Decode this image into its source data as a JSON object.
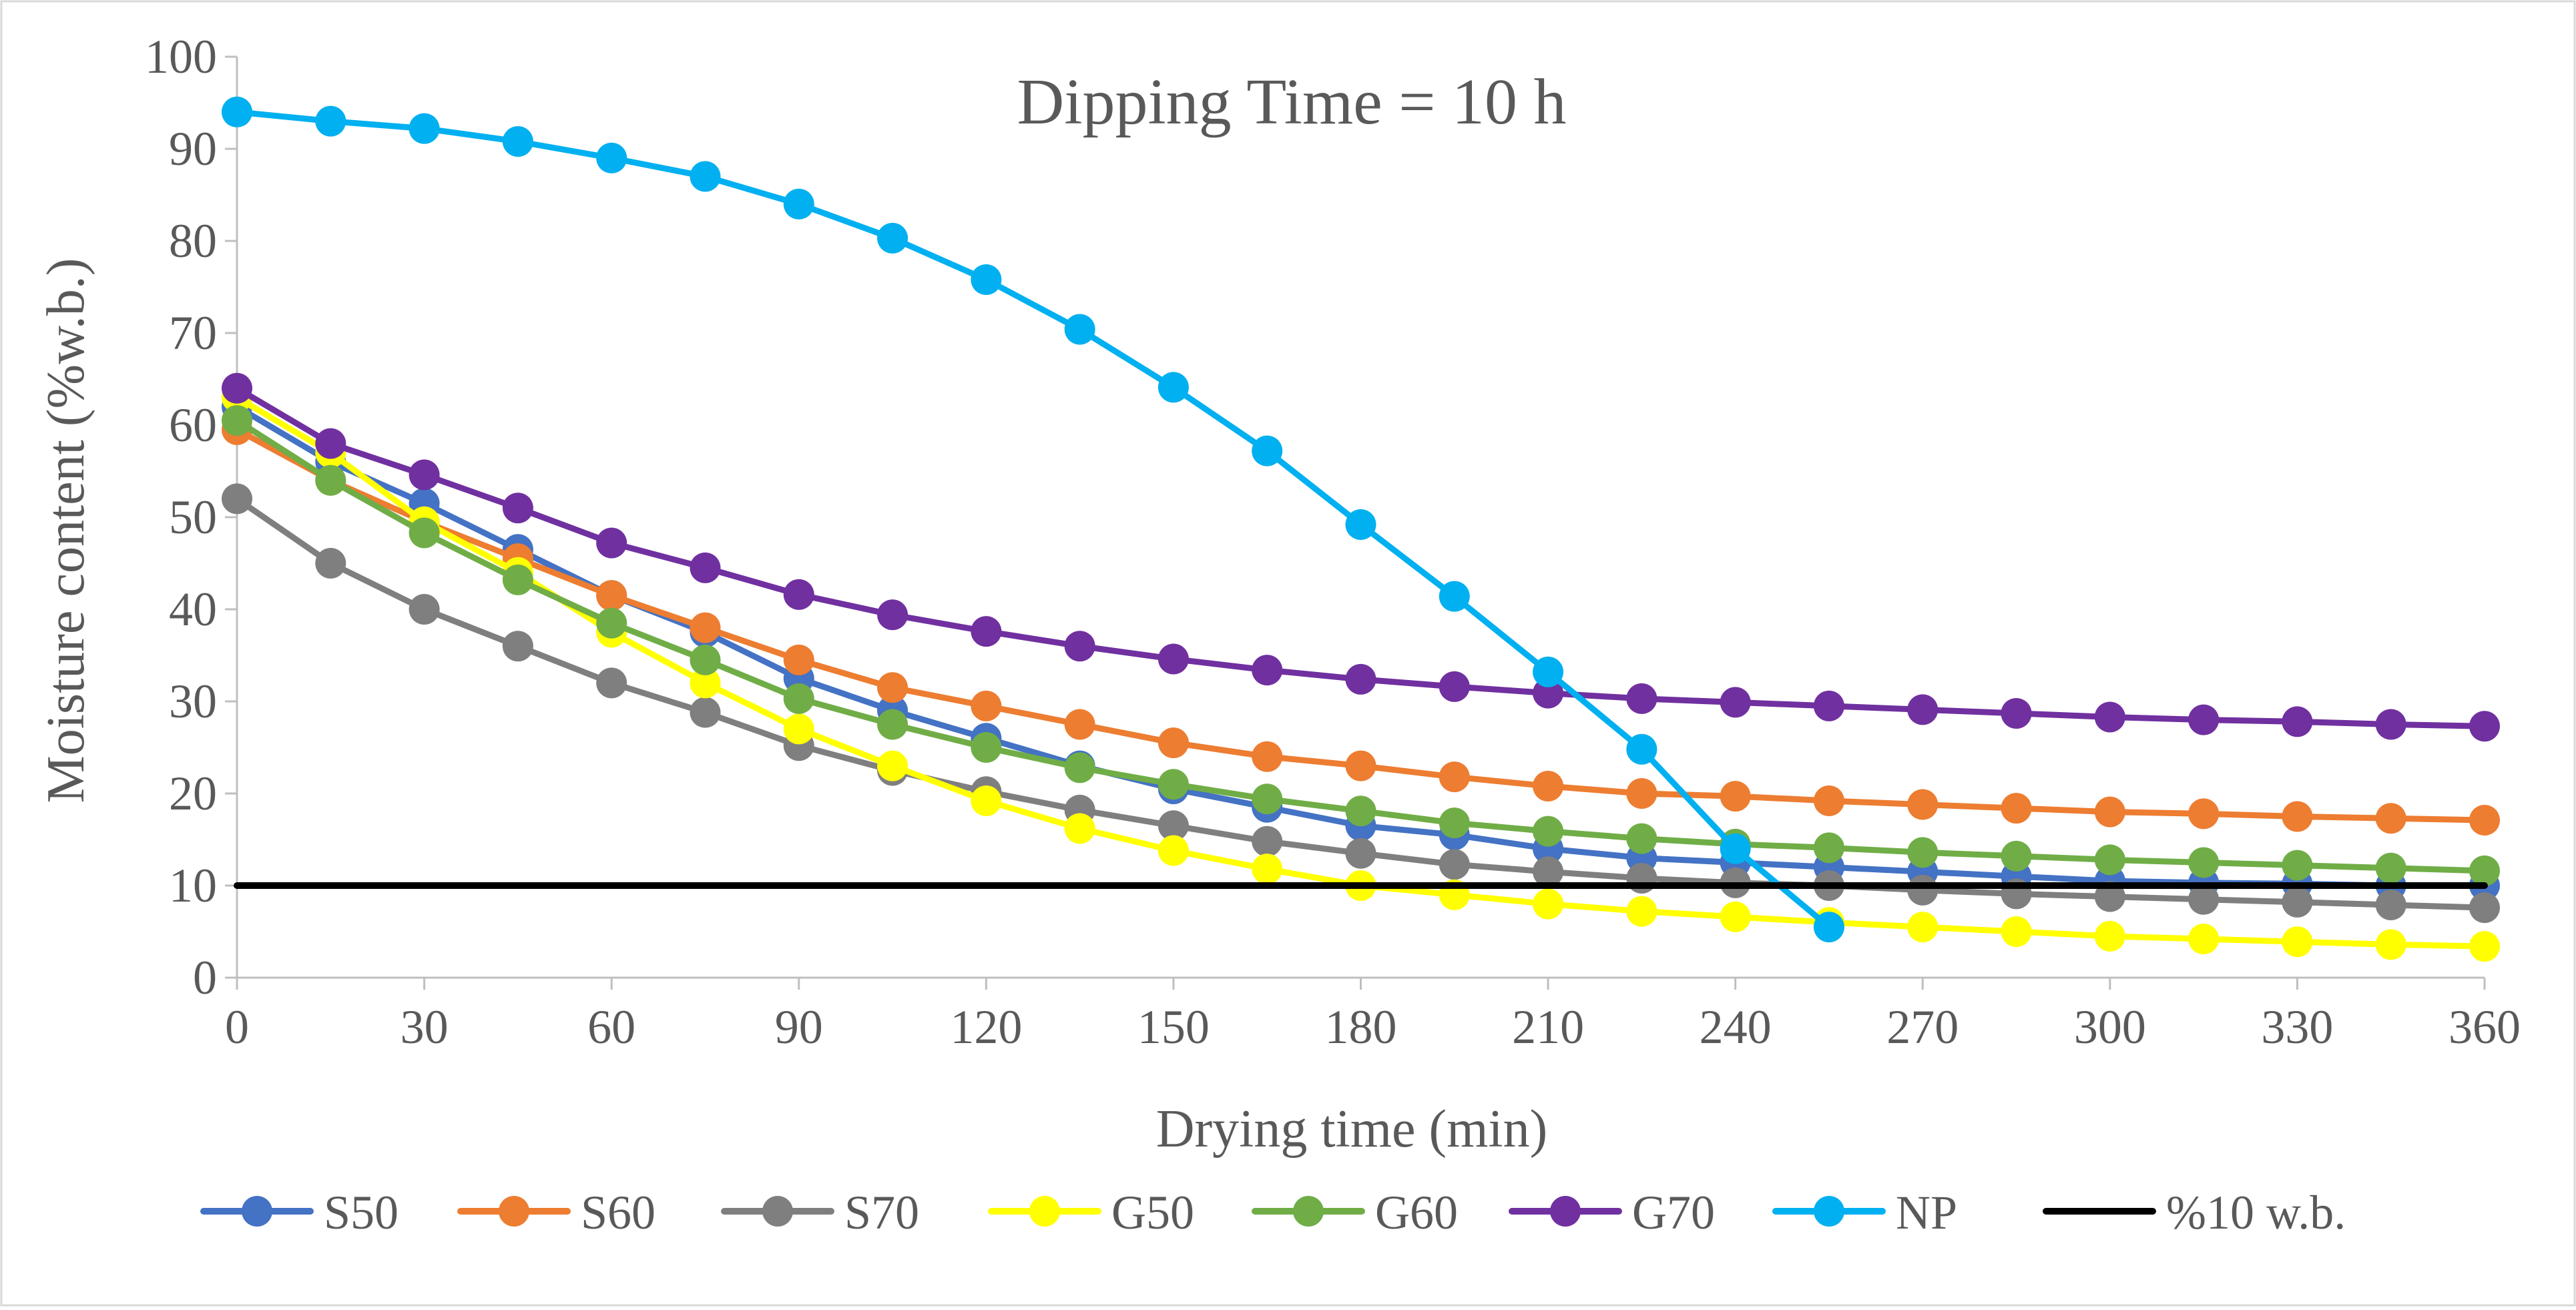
{
  "chart_data": {
    "type": "line",
    "title": "Dipping Time = 10 h",
    "xlabel": "Drying time (min)",
    "ylabel": "Moisture content (%w.b.)",
    "xlim": [
      0,
      360
    ],
    "ylim": [
      0,
      100
    ],
    "xticks": [
      0,
      30,
      60,
      90,
      120,
      150,
      180,
      210,
      240,
      270,
      300,
      330,
      360
    ],
    "yticks": [
      0,
      10,
      20,
      30,
      40,
      50,
      60,
      70,
      80,
      90,
      100
    ],
    "grid": false,
    "legend_position": "bottom",
    "series": [
      {
        "name": "S50",
        "color": "#4472C4",
        "x": [
          0,
          15,
          30,
          45,
          60,
          75,
          90,
          105,
          120,
          135,
          150,
          165,
          180,
          195,
          210,
          225,
          240,
          255,
          270,
          285,
          300,
          315,
          330,
          345,
          360
        ],
        "values": [
          62,
          56,
          51.5,
          46.5,
          41.5,
          37.5,
          32.5,
          29,
          26,
          23,
          20.5,
          18.5,
          16.5,
          15.5,
          14,
          13,
          12.5,
          12,
          11.5,
          11,
          10.5,
          10.3,
          10.2,
          10,
          10
        ]
      },
      {
        "name": "S60",
        "color": "#ED7D31",
        "x": [
          0,
          15,
          30,
          45,
          60,
          75,
          90,
          105,
          120,
          135,
          150,
          165,
          180,
          195,
          210,
          225,
          240,
          255,
          270,
          285,
          300,
          315,
          330,
          345,
          360
        ],
        "values": [
          59.5,
          54,
          49.5,
          45.5,
          41.5,
          38,
          34.5,
          31.5,
          29.5,
          27.5,
          25.5,
          24,
          23,
          21.8,
          20.8,
          20,
          19.7,
          19.2,
          18.8,
          18.4,
          18,
          17.8,
          17.5,
          17.3,
          17.1
        ]
      },
      {
        "name": "S70",
        "color": "#7F7F7F",
        "x": [
          0,
          15,
          30,
          45,
          60,
          75,
          90,
          105,
          120,
          135,
          150,
          165,
          180,
          195,
          210,
          225,
          240,
          255,
          270,
          285,
          300,
          315,
          330,
          345,
          360
        ],
        "values": [
          52,
          45,
          40,
          36,
          32,
          28.8,
          25.2,
          22.5,
          20.2,
          18.2,
          16.5,
          14.8,
          13.5,
          12.3,
          11.5,
          10.8,
          10.3,
          10,
          9.5,
          9.1,
          8.8,
          8.5,
          8.2,
          7.9,
          7.6
        ]
      },
      {
        "name": "G50",
        "color": "#FFFF00",
        "x": [
          0,
          15,
          30,
          45,
          60,
          75,
          90,
          105,
          120,
          135,
          150,
          165,
          180,
          195,
          210,
          225,
          240,
          255,
          270,
          285,
          300,
          315,
          330,
          345,
          360
        ],
        "values": [
          63,
          57,
          49.5,
          44,
          37.5,
          32,
          27,
          23,
          19.2,
          16.2,
          13.8,
          11.8,
          10,
          9,
          8,
          7.2,
          6.6,
          6,
          5.5,
          5,
          4.5,
          4.2,
          3.9,
          3.6,
          3.4
        ]
      },
      {
        "name": "G60",
        "color": "#70AD47",
        "x": [
          0,
          15,
          30,
          45,
          60,
          75,
          90,
          105,
          120,
          135,
          150,
          165,
          180,
          195,
          210,
          225,
          240,
          255,
          270,
          285,
          300,
          315,
          330,
          345,
          360
        ],
        "values": [
          60.5,
          54,
          48.3,
          43.2,
          38.5,
          34.5,
          30.3,
          27.5,
          25,
          22.8,
          21,
          19.4,
          18.1,
          16.8,
          15.9,
          15.1,
          14.5,
          14.1,
          13.6,
          13.2,
          12.8,
          12.5,
          12.2,
          11.9,
          11.6
        ]
      },
      {
        "name": "G70",
        "color": "#7030A0",
        "x": [
          0,
          15,
          30,
          45,
          60,
          75,
          90,
          105,
          120,
          135,
          150,
          165,
          180,
          195,
          210,
          225,
          240,
          255,
          270,
          285,
          300,
          315,
          330,
          345,
          360
        ],
        "values": [
          64,
          58,
          54.6,
          51,
          47.2,
          44.5,
          41.6,
          39.4,
          37.6,
          36,
          34.6,
          33.4,
          32.4,
          31.6,
          30.9,
          30.3,
          29.9,
          29.5,
          29.1,
          28.7,
          28.3,
          28,
          27.8,
          27.5,
          27.3
        ]
      },
      {
        "name": "NP",
        "color": "#00B0F0",
        "x": [
          0,
          15,
          30,
          45,
          60,
          75,
          90,
          105,
          120,
          135,
          150,
          165,
          180,
          195,
          210,
          225,
          240,
          255
        ],
        "values": [
          94,
          93,
          92.2,
          90.8,
          89,
          87,
          84,
          80.3,
          75.8,
          70.4,
          64.1,
          57.2,
          49.2,
          41.4,
          33.2,
          24.8,
          14,
          5.5
        ]
      },
      {
        "name": "%10 w.b.",
        "color": "#000000",
        "x": [
          0,
          360
        ],
        "values": [
          10,
          10
        ],
        "markers": false
      }
    ]
  }
}
